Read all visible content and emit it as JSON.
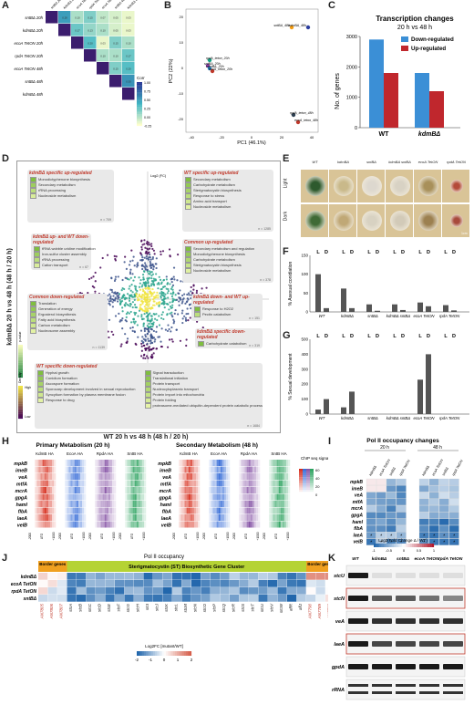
{
  "panels": {
    "A": "A",
    "B": "B",
    "C": "C",
    "D": "D",
    "E": "E",
    "F": "F",
    "G": "G",
    "H": "H",
    "I": "I",
    "J": "J",
    "K": "K"
  },
  "panelA": {
    "samples": [
      "sntBΔ 20h",
      "kdmBΔ 20h",
      "ecoA TetON 20h",
      "rpdA TetON 20h",
      "ecoA TetON 48h",
      "sntBΔ 48h",
      "kdmBΔ 48h"
    ],
    "corr_label": "Corr",
    "scale_ticks": [
      "1.00",
      "0.75",
      "0.50",
      "0.25",
      "0.00",
      "-0.25"
    ],
    "colors": {
      "high": "#253494",
      "mid": "#41b6c4",
      "low": "#ffffcc"
    }
  },
  "panelB": {
    "xlabel": "PC1 (46.1%)",
    "ylabel": "PC2 (22%)",
    "x_ticks": [
      "-40",
      "-20",
      "0",
      "20",
      "40"
    ],
    "y_ticks": [
      "20",
      "10",
      "0",
      "-10",
      "-20"
    ],
    "points": [
      {
        "label": "sntBΔ_48h",
        "color": "#f39c12"
      },
      {
        "label": "kdmBΔ_48h",
        "color": "#2c3e9e"
      },
      {
        "label": "rpdA_teton_20h",
        "color": "#16a085"
      },
      {
        "label": "sntBΔ_20h",
        "color": "#8e44ad"
      },
      {
        "label": "kdmBΔ_20h",
        "color": "#2980b9"
      },
      {
        "label": "ecoA_teton_20h",
        "color": "#c0392b"
      },
      {
        "label": "rpdA_teton_48h",
        "color": "#2c3e50"
      },
      {
        "label": "ecoA_teton_48h",
        "color": "#c0392b"
      }
    ]
  },
  "chart_data": {
    "type": "bar",
    "title": "Transcription changes",
    "subtitle": "20 h vs 48 h",
    "categories": [
      "WT",
      "kdmBΔ"
    ],
    "series": [
      {
        "name": "Down-regulated",
        "values": [
          2900,
          1800
        ],
        "color": "#3b8fd6"
      },
      {
        "name": "Up-regulated",
        "values": [
          1800,
          1200
        ],
        "color": "#c0272d"
      }
    ],
    "ylabel": "No. of genes",
    "ylim": [
      0,
      3000
    ],
    "yticks": [
      0,
      1000,
      2000,
      3000
    ]
  },
  "panelD": {
    "ylabel": "kdmBΔ 20 h vs 48 h (48 h / 20 h)",
    "xlabel": "WT 20 h vs 48 h (48 h / 20 h)",
    "axis_label": "Log2 (FC)",
    "pvalue_label": "p-value",
    "density_label": "Density",
    "high": "High",
    "low": "Low",
    "groups": [
      {
        "title": "kdmBΔ specific up-regulated",
        "items": [
          "Monodictyphenone biosynthesis",
          "Secondary metabolism",
          "rRNA processing",
          "Nucleoside metabolism"
        ],
        "n": "n = 709"
      },
      {
        "title": "WT specific up-regulated",
        "items": [
          "Secondary metabolism",
          "Carbohydrate metabolism",
          "Sterigmatocystin biosynthesis",
          "Response to stress",
          "Amino acid transport",
          "Nucleoside metabolism"
        ],
        "n": "n = 1285"
      },
      {
        "title": "kdmBΔ up- and WT down-regulated",
        "items": [
          "tRNA wobble uridine modification",
          "Iron-sulfur cluster assembly",
          "rRNA processing",
          "Cation transport"
        ],
        "n": "n = 67"
      },
      {
        "title": "Common up-regulated",
        "items": [
          "Secondary metabolism and regulation",
          "Monodictyphenone biosynthesis",
          "Carbohydrate metabolism",
          "Sterigmatocystin biosynthesis",
          "Nucleoside metabolism"
        ],
        "n": "n = 378"
      },
      {
        "title": "Common down-regulated",
        "items": [
          "Translation",
          "Generation of energy",
          "Ergosterol biosynthesis",
          "Fatty acid biosynthesis",
          "Carbon metabolism",
          "Nucleosome assembly"
        ],
        "n": "n = 1139"
      },
      {
        "title": "kdmBΔ down- and WT up-regulated",
        "items": [
          "Response to H2O2",
          "Pectin catabolism"
        ],
        "n": "n = 151"
      },
      {
        "title": "kdmBΔ specific down-regulated",
        "items": [
          "Carbohydrate catabolism"
        ],
        "n": "n = 319"
      },
      {
        "title": "WT specific down-regulated",
        "items_left": [
          "Hyphal growth",
          "Conidium formation",
          "Ascospore formation",
          "Sporocarp development involved in sexual reproduction",
          "Syncytium formation by plasma membrane fusion",
          "Response to drug"
        ],
        "items_right": [
          "Signal transduction",
          "Translational initiation",
          "Protein transport",
          "Nucleocytoplasmic transport",
          "Protein import into mitochondria",
          "Protein folding",
          "proteasome-mediated ubiquitin-dependent protein catabolic process"
        ],
        "n": "n = 1684"
      }
    ]
  },
  "panelE": {
    "strains": [
      "WT",
      "kdmBΔ",
      "sntBΔ",
      "kdmBΔ sntBΔ",
      "ecoA TetON",
      "rpdA TetON"
    ],
    "rows": [
      "Light",
      "Dark"
    ],
    "scale": "1cm"
  },
  "panelF": {
    "ylabel": "% Asexual conidiation",
    "yticks": [
      "150",
      "100",
      "50",
      "0"
    ],
    "groups": [
      "WT",
      "kdmBΔ",
      "sntBΔ",
      "kdmBΔ sntBΔ",
      "ecoA TetON",
      "rpdA TetON"
    ],
    "L": "L",
    "D": "D",
    "values_L": [
      100,
      62,
      20,
      20,
      25,
      18
    ],
    "values_D": [
      10,
      10,
      3,
      5,
      15,
      4
    ],
    "stars": [
      "***",
      "*",
      "**",
      "***",
      "**",
      "**",
      "**",
      "***",
      "**",
      "**",
      "***",
      "***"
    ]
  },
  "panelG": {
    "ylabel": "% Sexual development",
    "yticks": [
      "500",
      "400",
      "300",
      "200",
      "100",
      "0"
    ],
    "groups": [
      "WT",
      "kdmBΔ",
      "sntBΔ",
      "kdmBΔ sntBΔ",
      "ecoA TetON",
      "rpdA TetON"
    ],
    "L": "L",
    "D": "D",
    "values_L": [
      30,
      45,
      0,
      0,
      230,
      0
    ],
    "values_D": [
      100,
      150,
      0,
      0,
      400,
      0
    ],
    "stars": [
      "***",
      "**",
      "**",
      "****",
      "****",
      "**",
      "***",
      "****"
    ]
  },
  "panelH": {
    "titles": [
      "Primary Metabolism (20 h)",
      "Secondary Metabolism (48 h)"
    ],
    "genes": [
      "mpkB",
      "imeB",
      "veA",
      "mtfA",
      "mcrA",
      "gpgA",
      "hamI",
      "flbA",
      "laeA",
      "velB"
    ],
    "cols_left": [
      "KdmB HA",
      "EcoA HA",
      "RpdA HA",
      "SntB HA"
    ],
    "cols_right": [
      "KdmB HA",
      "EcoA HA",
      "RpdA HA",
      "SntB HA"
    ],
    "col_colors": [
      "#d7301f",
      "#3a6fd8",
      "#8856a7",
      "#2ca25f"
    ],
    "xticks": [
      "-2000",
      "ATG",
      "+1000"
    ],
    "legend_title": "ChIP seq signal",
    "legend_ticks": [
      "60",
      "40",
      "20",
      "0"
    ]
  },
  "panelI": {
    "title": "Pol II occupancy changes",
    "time_labels": [
      "20 h",
      "48 h"
    ],
    "columns": [
      "kdmBΔ",
      "ecoA TetON",
      "sntBΔ",
      "rpdA TetON"
    ],
    "genes": [
      "mpkB",
      "imeB",
      "veA",
      "mtfA",
      "mcrA",
      "gpgA",
      "hamI",
      "flbA",
      "laeA",
      "velB"
    ],
    "legend": "Log2(Fold Change Δ / WT)",
    "legend_ticks": [
      "-1",
      "-0.5",
      "0",
      "0.5",
      "1"
    ],
    "star": "*"
  },
  "panelJ": {
    "title": "Pol II occupancy",
    "border_label": "Border genes",
    "cluster_label": "Sterigmatocystin (ST) Biosynthetic Gene Cluster",
    "rows": [
      "kdmBΔ",
      "ecoA TetON",
      "rpdA TetON",
      "sntBΔ"
    ],
    "genes_left": [
      "AN7805",
      "AN7806",
      "AN7807"
    ],
    "genes_cluster": [
      "stcA",
      "stcB",
      "stcC",
      "stcD",
      "stcE",
      "stcF",
      "stcG",
      "stcH",
      "stcI",
      "stcJ",
      "stcK",
      "stcL",
      "stcM",
      "stcN",
      "stcO",
      "stcP",
      "stcQ",
      "stcR",
      "stcS",
      "stcT",
      "stcU",
      "stcV",
      "stcW",
      "aflR",
      "aflJ"
    ],
    "genes_right": [
      "AN7790",
      "AN7789",
      "AN7788"
    ],
    "legend": "Log2FC [mutant/WT]",
    "legend_ticks": [
      "-2",
      "-1",
      "0",
      "1",
      "2"
    ]
  },
  "panelK": {
    "columns": [
      "WT",
      "kdmBΔ",
      "sntBΔ",
      "ecoA TetON",
      "rpdA TetON"
    ],
    "rows": [
      "stcU",
      "stcN",
      "veA",
      "laeA",
      "gpdA",
      "rRNA"
    ]
  }
}
